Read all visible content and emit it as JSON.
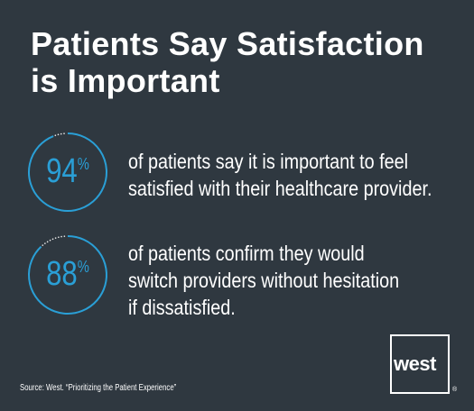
{
  "title": "Patients Say Satisfaction is Important",
  "stats": [
    {
      "value": "94",
      "unit": "%",
      "lines": [
        "of patients say it is important to feel",
        "satisfied with their healthcare provider."
      ]
    },
    {
      "value": "88",
      "unit": "%",
      "lines": [
        "of patients confirm they would",
        "switch providers without hesitation",
        "if dissatisfied."
      ]
    }
  ],
  "chart_data": {
    "type": "pie",
    "categories": [
      "of patients say it is important to feel satisfied with their healthcare provider.",
      "of patients confirm they would switch providers without hesitation if dissatisfied."
    ],
    "values": [
      94,
      88
    ],
    "unit": "%",
    "title": "Patients Say Satisfaction is Important"
  },
  "source": "Source:  West. “Prioritizing the Patient Experience”",
  "logo": {
    "text": "west",
    "mark": "®"
  },
  "colors": {
    "background": "#2f3840",
    "accent": "#2a9fd6",
    "text": "#ffffff"
  }
}
